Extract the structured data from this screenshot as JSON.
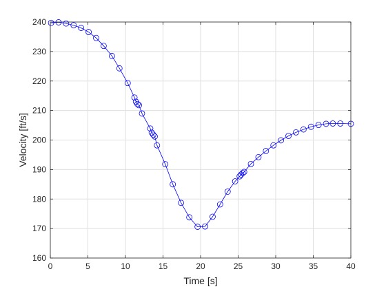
{
  "chart_data": {
    "type": "line",
    "title": "",
    "xlabel": "Time [s]",
    "ylabel": "Velocity [ft/s]",
    "xlim": [
      0,
      40
    ],
    "ylim": [
      160,
      240
    ],
    "xticks": [
      0,
      5,
      10,
      15,
      20,
      25,
      30,
      35,
      40
    ],
    "yticks": [
      160,
      170,
      180,
      190,
      200,
      210,
      220,
      230,
      240
    ],
    "grid": true,
    "legend": "none",
    "series": [
      {
        "marker": "circle",
        "color": "#0000ff",
        "x": [
          0.1,
          1.1,
          2.1,
          3.1,
          4.1,
          5.1,
          6.1,
          7.1,
          8.2,
          9.2,
          10.3,
          11.2,
          11.4,
          11.6,
          11.8,
          12.2,
          13.3,
          13.5,
          13.7,
          13.9,
          14.2,
          15.3,
          16.3,
          17.4,
          18.5,
          19.6,
          20.6,
          21.6,
          22.6,
          23.6,
          24.6,
          25.2,
          25.4,
          25.6,
          25.8,
          26.7,
          27.7,
          28.7,
          29.7,
          30.7,
          31.7,
          32.7,
          33.7,
          34.7,
          35.7,
          36.7,
          37.6,
          38.6,
          40.0
        ],
        "y": [
          239.7,
          239.9,
          239.5,
          238.9,
          238.0,
          236.6,
          234.6,
          231.9,
          228.5,
          224.3,
          219.3,
          214.4,
          213.0,
          212.2,
          211.8,
          209.0,
          203.9,
          202.5,
          201.8,
          201.2,
          198.2,
          191.8,
          185.0,
          178.7,
          173.8,
          170.6,
          170.7,
          174.0,
          178.2,
          182.5,
          186.0,
          187.7,
          188.3,
          188.8,
          189.2,
          191.9,
          194.2,
          196.3,
          198.2,
          199.9,
          201.4,
          202.6,
          203.6,
          204.5,
          205.1,
          205.5,
          205.6,
          205.6,
          205.5
        ]
      }
    ]
  }
}
